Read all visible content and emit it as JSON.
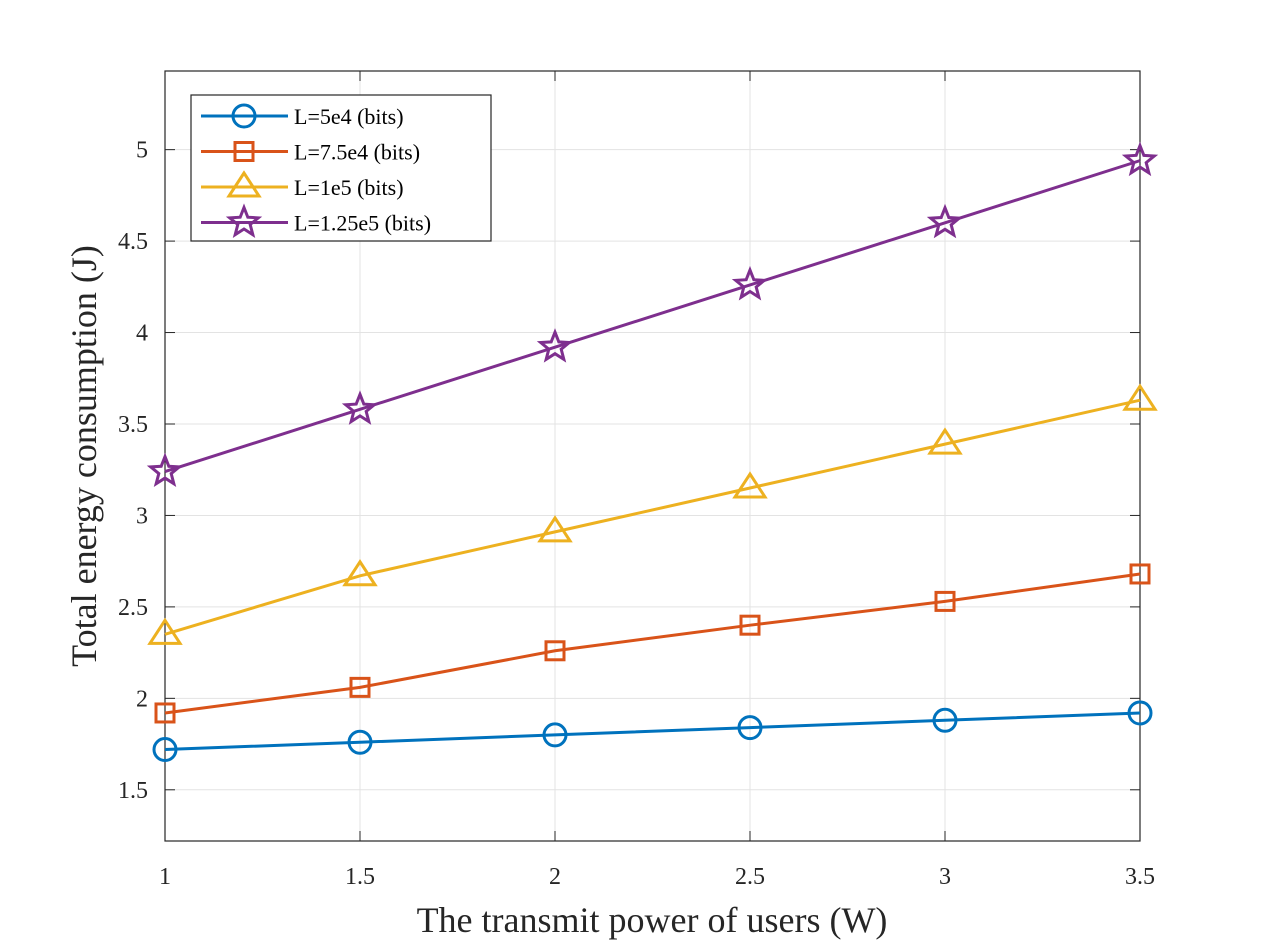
{
  "chart_data": {
    "type": "line",
    "title": "",
    "xlabel": "The transmit power of users (W)",
    "ylabel": "Total energy consumption (J)",
    "x": [
      1,
      1.5,
      2,
      2.5,
      3,
      3.5
    ],
    "xlim": [
      1,
      3.5
    ],
    "ylim": [
      1.22,
      5.43
    ],
    "xticks": [
      1,
      1.5,
      2,
      2.5,
      3,
      3.5
    ],
    "xtick_labels": [
      "1",
      "1.5",
      "2",
      "2.5",
      "3",
      "3.5"
    ],
    "yticks": [
      1.5,
      2,
      2.5,
      3,
      3.5,
      4,
      4.5,
      5
    ],
    "ytick_labels": [
      "1.5",
      "2",
      "2.5",
      "3",
      "3.5",
      "4",
      "4.5",
      "5"
    ],
    "grid": true,
    "legend_position": "top-left",
    "series": [
      {
        "name": "L=5e4 (bits)",
        "color": "#0072BD",
        "marker": "circle",
        "values": [
          1.72,
          1.76,
          1.8,
          1.84,
          1.88,
          1.92
        ]
      },
      {
        "name": "L=7.5e4 (bits)",
        "color": "#D95319",
        "marker": "square",
        "values": [
          1.92,
          2.06,
          2.26,
          2.4,
          2.53,
          2.68
        ]
      },
      {
        "name": "L=1e5 (bits)",
        "color": "#EDB120",
        "marker": "triangle",
        "values": [
          2.35,
          2.67,
          2.91,
          3.15,
          3.39,
          3.63
        ]
      },
      {
        "name": "L=1.25e5 (bits)",
        "color": "#7E2F8E",
        "marker": "star",
        "values": [
          3.24,
          3.58,
          3.92,
          4.26,
          4.6,
          4.94
        ]
      }
    ]
  }
}
